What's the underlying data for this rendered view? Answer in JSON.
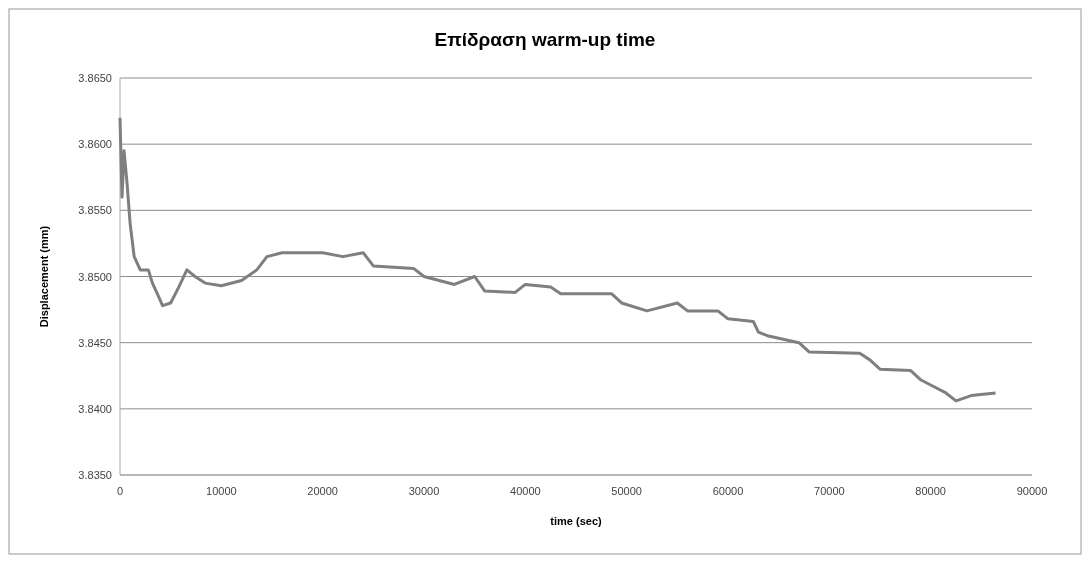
{
  "chart_data": {
    "type": "line",
    "title": "Επίδραση warm-up time",
    "xlabel": "time (sec)",
    "ylabel": "Displacement (mm)",
    "xlim": [
      0,
      90000
    ],
    "xticks": [
      0,
      10000,
      20000,
      30000,
      40000,
      50000,
      60000,
      70000,
      80000,
      90000
    ],
    "ylim": [
      3.835,
      3.865
    ],
    "yticks": [
      {
        "value": 3.835,
        "label": "3.8350"
      },
      {
        "value": 3.84,
        "label": "3.8400"
      },
      {
        "value": 3.845,
        "label": "3.8450"
      },
      {
        "value": 3.85,
        "label": "3.8500"
      },
      {
        "value": 3.855,
        "label": "3.8550"
      },
      {
        "value": 3.86,
        "label": "3.8600"
      },
      {
        "value": 3.865,
        "label": "3.8650"
      }
    ],
    "grid": "y",
    "marker": "none",
    "line_style": "solid",
    "series": [
      {
        "color": "#7f7f7f",
        "x": [
          0,
          200,
          400,
          700,
          1000,
          1400,
          2000,
          2800,
          3200,
          3800,
          4200,
          5000,
          5800,
          6600,
          7400,
          8400,
          10000,
          12000,
          13500,
          14500,
          16000,
          20000,
          22000,
          24000,
          25000,
          29000,
          30000,
          33000,
          35000,
          36000,
          39000,
          40000,
          42500,
          43500,
          48500,
          49500,
          52000,
          55000,
          56000,
          59000,
          60000,
          62500,
          63000,
          64000,
          67000,
          68000,
          73000,
          74000,
          75000,
          78000,
          79000,
          80000,
          81500,
          82500,
          84000,
          86400
        ],
        "values": [
          3.862,
          3.856,
          3.8595,
          3.857,
          3.854,
          3.8515,
          3.8505,
          3.8505,
          3.8495,
          3.8485,
          3.8478,
          3.848,
          3.8492,
          3.8505,
          3.85,
          3.8495,
          3.8493,
          3.8497,
          3.8505,
          3.8515,
          3.8518,
          3.8518,
          3.8515,
          3.8518,
          3.8508,
          3.8506,
          3.85,
          3.8494,
          3.85,
          3.8489,
          3.8488,
          3.8494,
          3.8492,
          3.8487,
          3.8487,
          3.848,
          3.8474,
          3.848,
          3.8474,
          3.8474,
          3.8468,
          3.8466,
          3.8458,
          3.8455,
          3.845,
          3.8443,
          3.8442,
          3.8437,
          3.843,
          3.8429,
          3.8422,
          3.8418,
          3.8412,
          3.8406,
          3.841,
          3.8412
        ]
      }
    ]
  }
}
